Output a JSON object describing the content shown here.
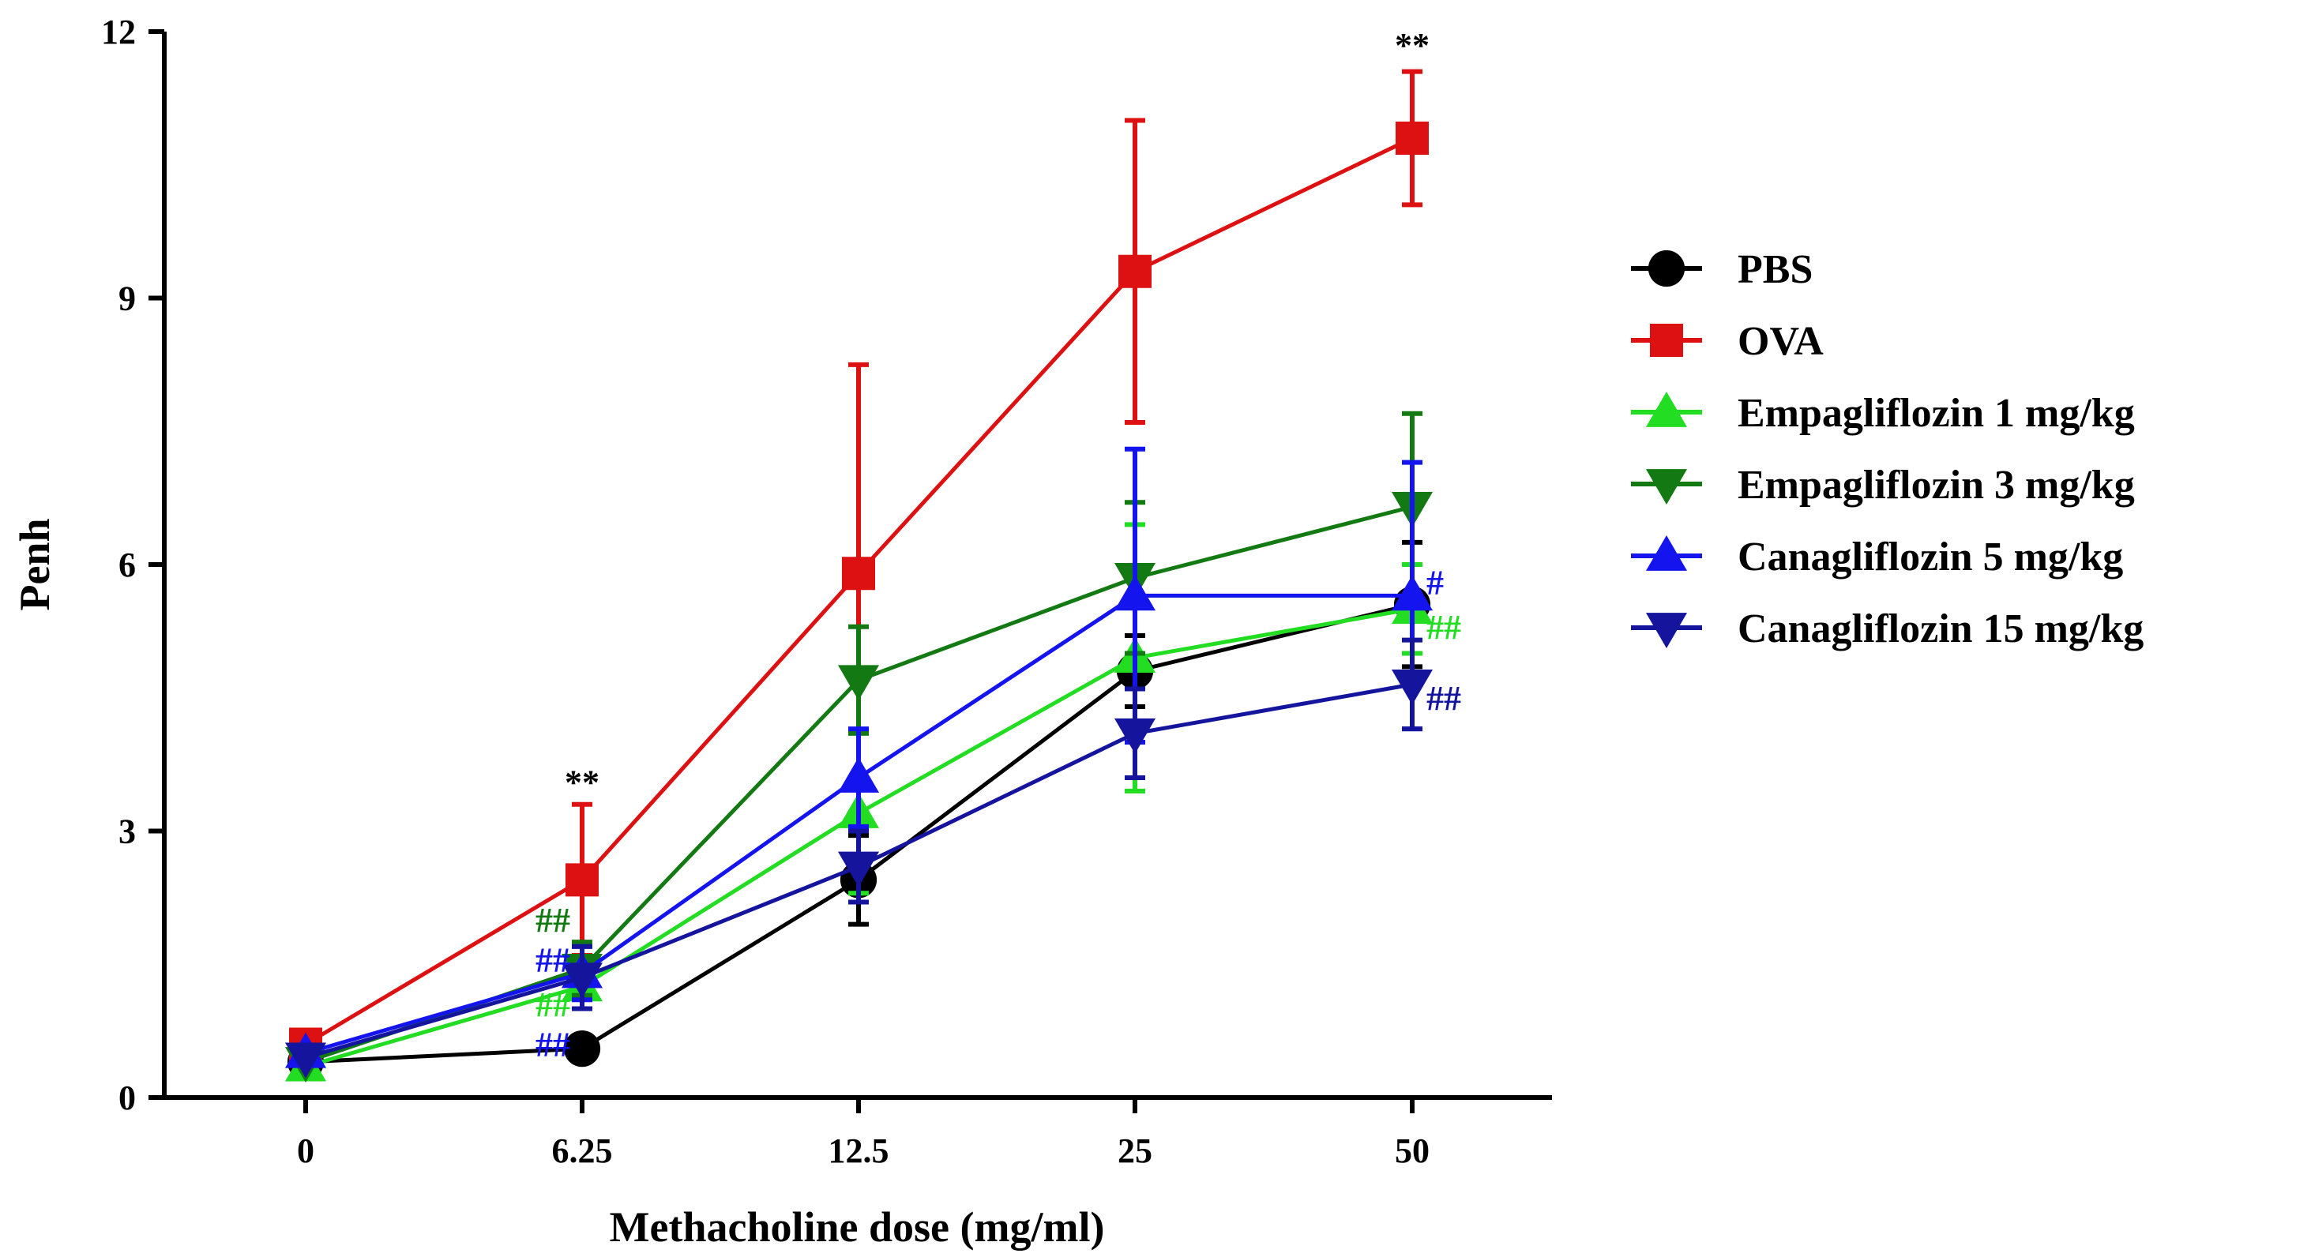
{
  "chart_data": {
    "type": "line",
    "title": "",
    "xlabel": "Methacholine dose (mg/ml)",
    "ylabel": "Penh",
    "categories": [
      "0",
      "6.25",
      "12.5",
      "25",
      "50"
    ],
    "ylim": [
      0,
      12
    ],
    "yticks": [
      "0",
      "3",
      "6",
      "9",
      "12"
    ],
    "legend_position": "right",
    "series": [
      {
        "name": "PBS",
        "color": "#000000",
        "marker": "circle",
        "values": [
          0.4,
          0.55,
          2.45,
          4.8,
          5.55
        ],
        "error": [
          0.05,
          0.05,
          0.5,
          0.4,
          0.7
        ]
      },
      {
        "name": "OVA",
        "color": "#dd1111",
        "marker": "square",
        "values": [
          0.6,
          2.45,
          5.9,
          9.3,
          10.8
        ],
        "error": [
          0.05,
          0.85,
          2.35,
          1.7,
          0.75
        ]
      },
      {
        "name": "Empagliflozin 1 mg/kg",
        "color": "#22dd22",
        "marker": "triangle-up",
        "values": [
          0.35,
          1.25,
          3.2,
          4.95,
          5.5
        ],
        "error": [
          0.05,
          0.25,
          0.9,
          1.5,
          0.5
        ]
      },
      {
        "name": "Empagliflozin 3 mg/kg",
        "color": "#137a13",
        "marker": "triangle-down",
        "values": [
          0.4,
          1.45,
          4.7,
          5.85,
          6.65
        ],
        "error": [
          0.05,
          0.3,
          0.6,
          0.85,
          1.05
        ]
      },
      {
        "name": "Canagliflozin 5 mg/kg",
        "color": "#1414ee",
        "marker": "triangle-up",
        "values": [
          0.5,
          1.4,
          3.6,
          5.65,
          5.65
        ],
        "error": [
          0.05,
          0.3,
          0.55,
          1.65,
          1.5
        ]
      },
      {
        "name": "Canagliflozin 15 mg/kg",
        "color": "#14149c",
        "marker": "triangle-down",
        "values": [
          0.45,
          1.35,
          2.6,
          4.1,
          4.65
        ],
        "error": [
          0.05,
          0.35,
          0.4,
          0.5,
          0.5
        ]
      }
    ],
    "annotations": [
      {
        "text": "**",
        "color": "#000000",
        "x_index": 1,
        "y": 3.55
      },
      {
        "text": "**",
        "color": "#000000",
        "x_index": 4,
        "y": 11.85
      },
      {
        "text": "##",
        "color": "#137a13",
        "x_index": 1,
        "y": 2.0
      },
      {
        "text": "##",
        "color": "#1414ee",
        "x_index": 1,
        "y": 1.55
      },
      {
        "text": "##",
        "color": "#22dd22",
        "x_index": 1,
        "y": 1.05
      },
      {
        "text": "##",
        "color": "#1414ee",
        "x_index": 1,
        "y": 0.6
      },
      {
        "text": "#",
        "color": "#1414ee",
        "x_index": 4,
        "y": 5.8
      },
      {
        "text": "##",
        "color": "#22dd22",
        "x_index": 4,
        "y": 5.3
      },
      {
        "text": "##",
        "color": "#14149c",
        "x_index": 4,
        "y": 4.5
      }
    ]
  }
}
